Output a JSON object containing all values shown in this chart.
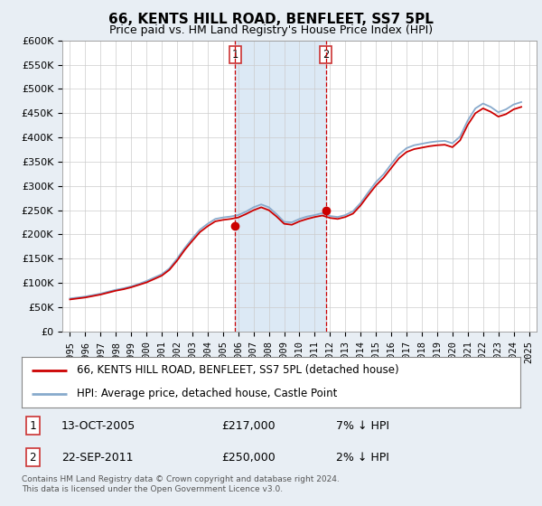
{
  "title": "66, KENTS HILL ROAD, BENFLEET, SS7 5PL",
  "subtitle": "Price paid vs. HM Land Registry's House Price Index (HPI)",
  "ylim": [
    0,
    600000
  ],
  "yticks": [
    0,
    50000,
    100000,
    150000,
    200000,
    250000,
    300000,
    350000,
    400000,
    450000,
    500000,
    550000,
    600000
  ],
  "ytick_labels": [
    "£0",
    "£50K",
    "£100K",
    "£150K",
    "£200K",
    "£250K",
    "£300K",
    "£350K",
    "£400K",
    "£450K",
    "£500K",
    "£550K",
    "£600K"
  ],
  "sale1_date": 2005.79,
  "sale1_price": 217000,
  "sale1_label": "1",
  "sale1_text": "13-OCT-2005",
  "sale1_amount": "£217,000",
  "sale1_hpi": "7% ↓ HPI",
  "sale2_date": 2011.73,
  "sale2_price": 250000,
  "sale2_label": "2",
  "sale2_text": "22-SEP-2011",
  "sale2_amount": "£250,000",
  "sale2_hpi": "2% ↓ HPI",
  "shade_color": "#dce9f5",
  "line_red": "#cc0000",
  "line_blue": "#88aacc",
  "legend_line1": "66, KENTS HILL ROAD, BENFLEET, SS7 5PL (detached house)",
  "legend_line2": "HPI: Average price, detached house, Castle Point",
  "footer": "Contains HM Land Registry data © Crown copyright and database right 2024.\nThis data is licensed under the Open Government Licence v3.0.",
  "background_color": "#e8eef4",
  "plot_bg": "#ffffff",
  "title_fontsize": 11,
  "subtitle_fontsize": 9,
  "tick_fontsize": 8,
  "legend_fontsize": 8.5,
  "table_fontsize": 9
}
